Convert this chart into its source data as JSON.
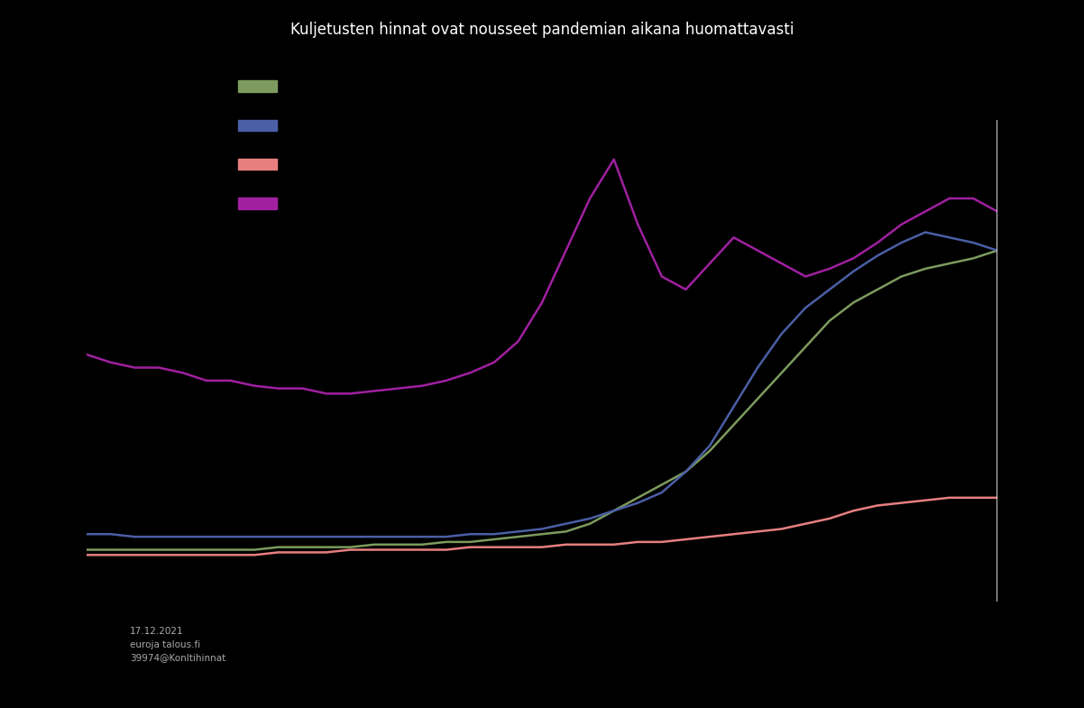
{
  "title": "Kuljetusten hinnat ovat nousseet pandemian aikana huomattavasti",
  "background_color": "#000000",
  "text_color": "#ffffff",
  "footer_text": "17.12.2021\neuroja talous.fi\n39974@Konltihinnat",
  "line_colors": [
    "#7d9b5e",
    "#4a5fa5",
    "#e87f7f",
    "#a020a0"
  ],
  "green_y": [
    100,
    100,
    100,
    100,
    100,
    100,
    100,
    100,
    101,
    101,
    101,
    101,
    102,
    102,
    102,
    103,
    103,
    104,
    105,
    106,
    107,
    110,
    115,
    120,
    125,
    130,
    138,
    148,
    158,
    168,
    178,
    188,
    195,
    200,
    205,
    208,
    210,
    212,
    215
  ],
  "blue_y": [
    106,
    106,
    105,
    105,
    105,
    105,
    105,
    105,
    105,
    105,
    105,
    105,
    105,
    105,
    105,
    105,
    106,
    106,
    107,
    108,
    110,
    112,
    115,
    118,
    122,
    130,
    140,
    155,
    170,
    183,
    193,
    200,
    207,
    213,
    218,
    222,
    220,
    218,
    215
  ],
  "pink_y": [
    98,
    98,
    98,
    98,
    98,
    98,
    98,
    98,
    99,
    99,
    99,
    100,
    100,
    100,
    100,
    100,
    101,
    101,
    101,
    101,
    102,
    102,
    102,
    103,
    103,
    104,
    105,
    106,
    107,
    108,
    110,
    112,
    115,
    117,
    118,
    119,
    120,
    120,
    120
  ],
  "magenta_y": [
    175,
    172,
    170,
    170,
    168,
    165,
    165,
    163,
    162,
    162,
    160,
    160,
    161,
    162,
    163,
    165,
    168,
    172,
    180,
    195,
    215,
    235,
    250,
    225,
    205,
    200,
    210,
    220,
    215,
    210,
    205,
    208,
    212,
    218,
    225,
    230,
    235,
    235,
    230
  ],
  "n_points": 39,
  "ylim": [
    80,
    265
  ],
  "figsize": [
    12.02,
    7.85
  ],
  "dpi": 100
}
